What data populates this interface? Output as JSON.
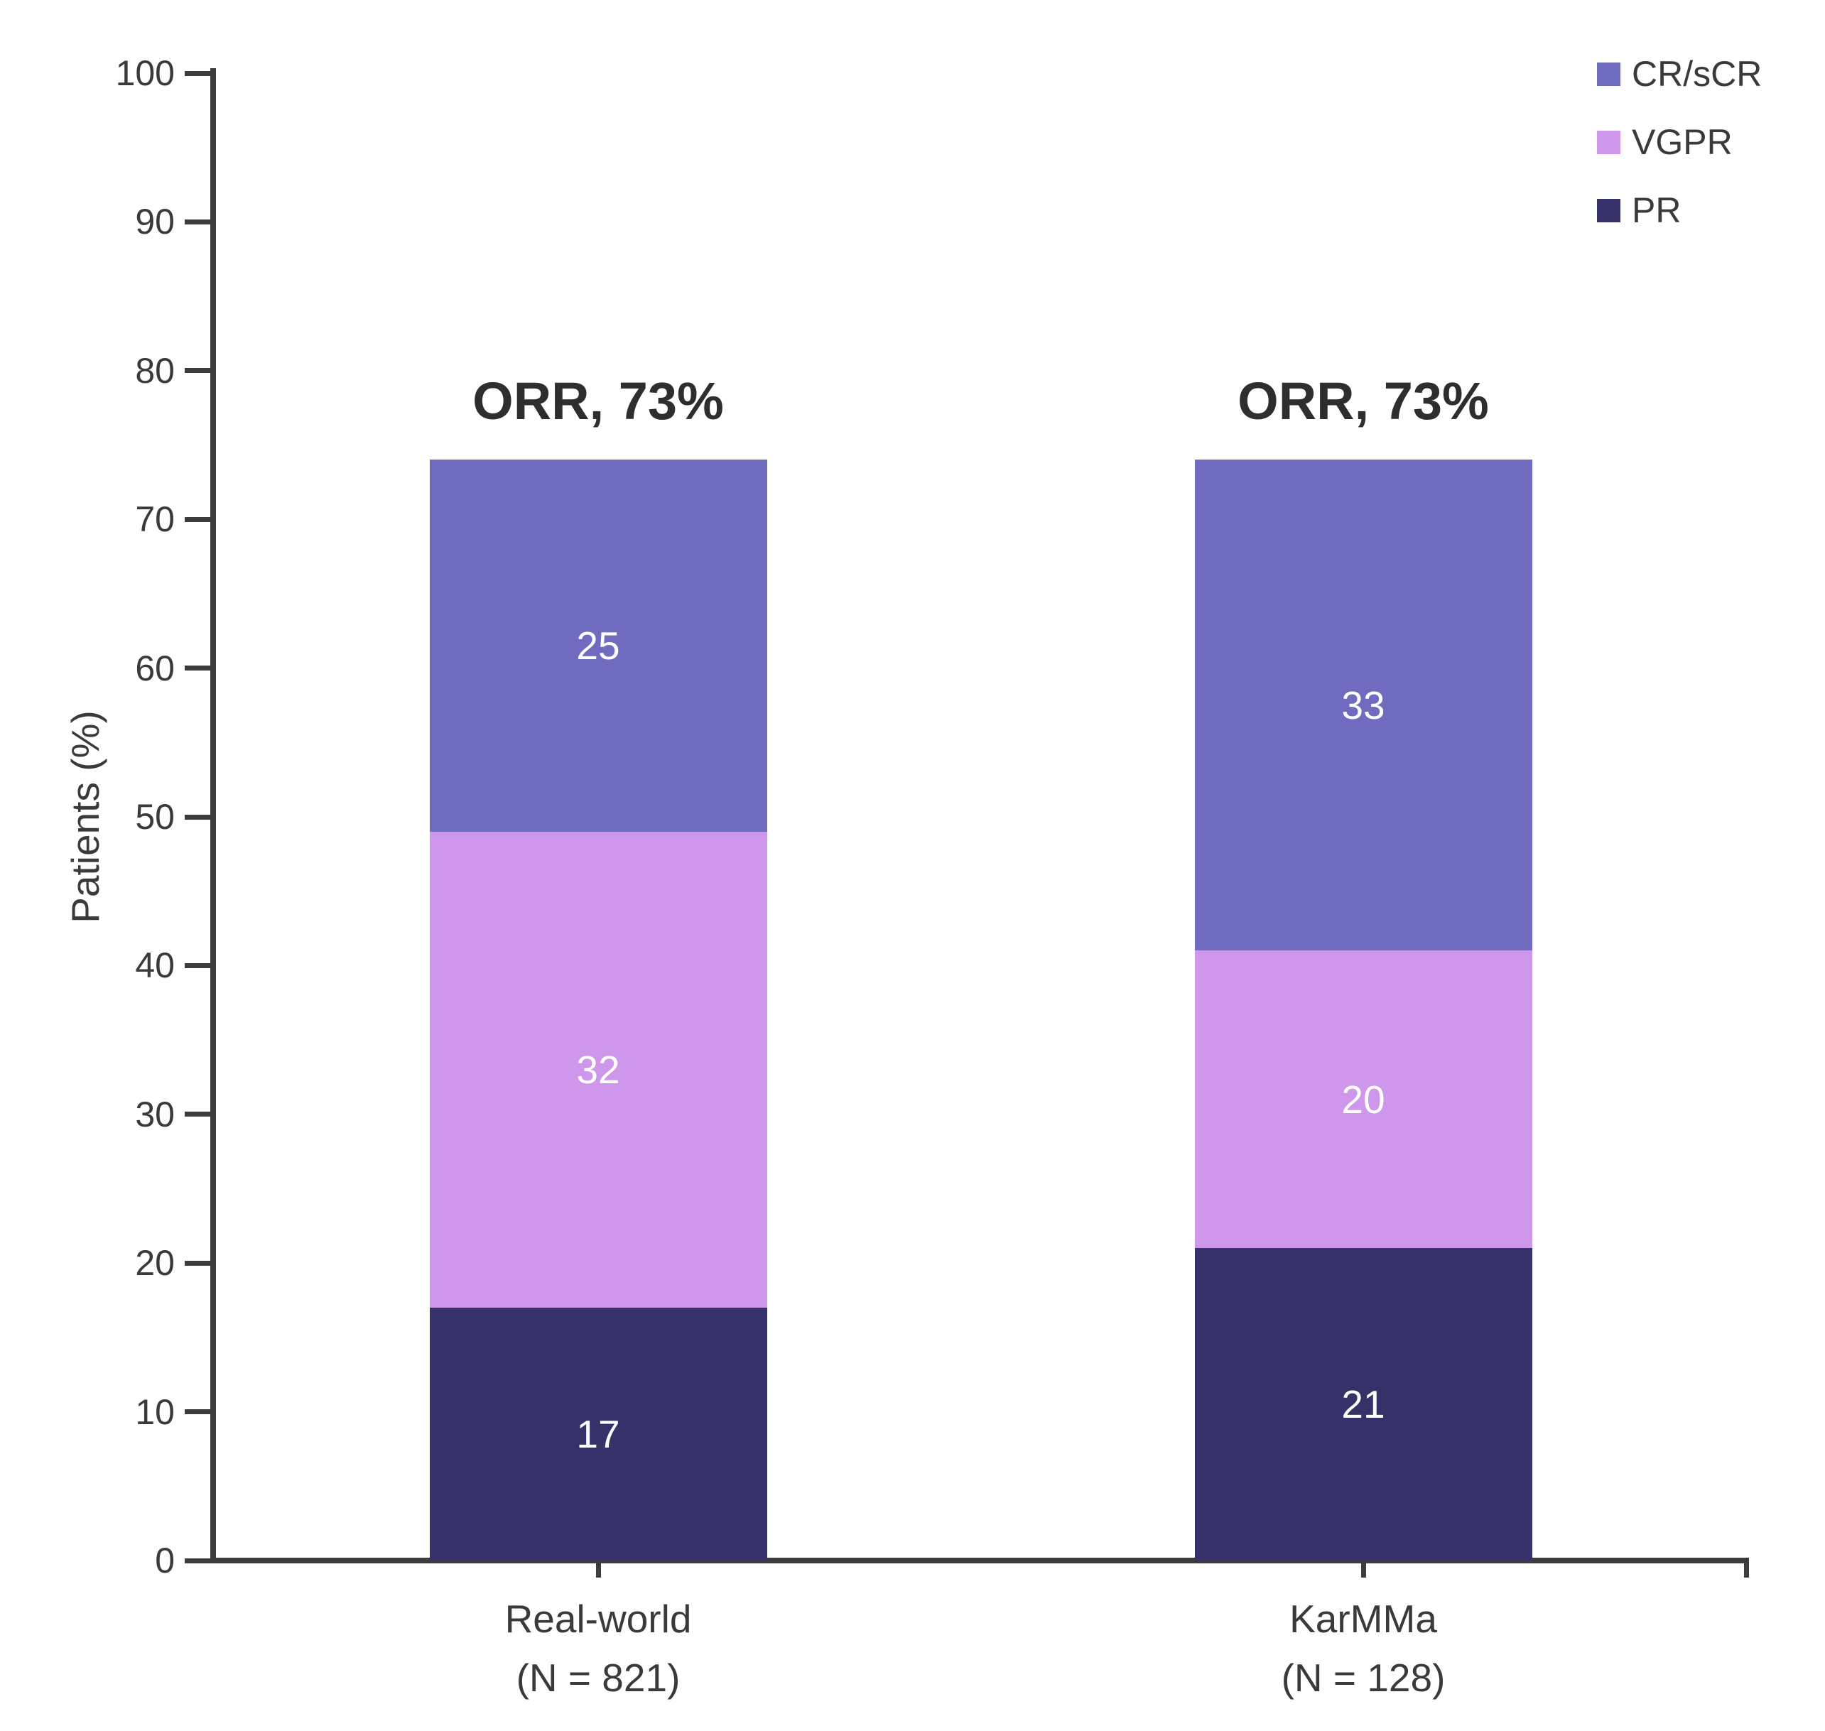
{
  "chart_data": {
    "type": "bar",
    "stacked": true,
    "ylabel": "Patients (%)",
    "ylim": [
      0,
      100
    ],
    "y_ticks": [
      0,
      10,
      20,
      30,
      40,
      50,
      60,
      70,
      80,
      90,
      100
    ],
    "grid": false,
    "legend_position": "top-right",
    "legend_order": [
      "CR/sCR",
      "VGPR",
      "PR"
    ],
    "categories": [
      {
        "label": "Real-world",
        "sublabel": "(N = 821)",
        "annotation": "ORR, 73%"
      },
      {
        "label": "KarMMa",
        "sublabel": "(N = 128)",
        "annotation": "ORR, 73%"
      }
    ],
    "series": [
      {
        "name": "PR",
        "color": "#363169",
        "values": [
          17,
          21
        ]
      },
      {
        "name": "VGPR",
        "color": "#CF97EB",
        "values": [
          32,
          20
        ]
      },
      {
        "name": "CR/sCR",
        "color": "#6F6BBF",
        "values": [
          25,
          33
        ]
      }
    ]
  },
  "colors": {
    "axis": "#3C3C3C",
    "tick_text": "#3A3A3A",
    "annotation_text": "#2E2E2E",
    "segment_value_text": "#FFFFFF",
    "background": "#FFFFFF"
  }
}
